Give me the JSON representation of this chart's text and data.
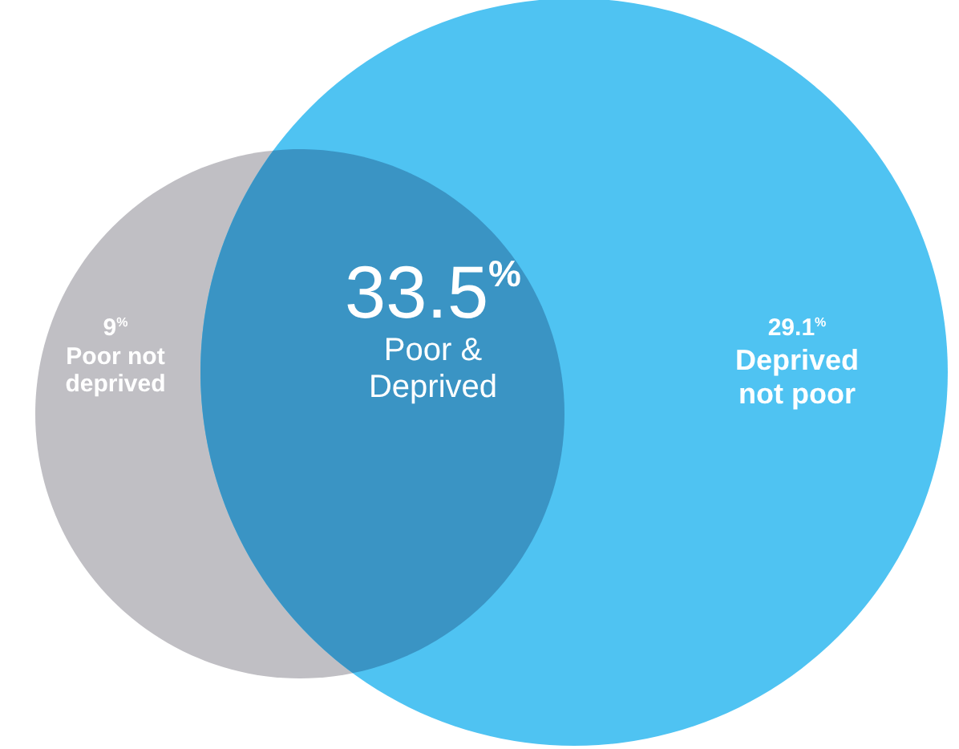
{
  "chart_data": {
    "type": "other",
    "categories": [
      "Poor not deprived",
      "Poor & Deprived",
      "Deprived not poor"
    ],
    "values": [
      9,
      33.5,
      29.1
    ],
    "value_labels": [
      "9$^{%}$",
      "33.5$^{%}$",
      "29.1$^{%}$"
    ],
    "colors": [
      "#c0bfc4",
      "#3a94c4",
      "#4fc3f2"
    ]
  }
}
